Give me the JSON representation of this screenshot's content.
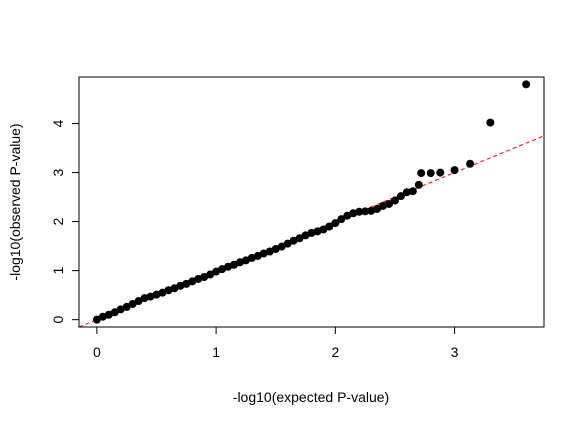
{
  "chart_data": {
    "type": "scatter",
    "title": "",
    "xlabel": "-log10(expected P-value)",
    "ylabel": "-log10(observed P-value)",
    "xlim": [
      -0.15,
      3.75
    ],
    "ylim": [
      -0.15,
      4.95
    ],
    "x_ticks": [
      0,
      1,
      2,
      3
    ],
    "y_ticks": [
      0,
      1,
      2,
      3,
      4
    ],
    "grid": false,
    "legend": "none",
    "reference_line": {
      "intercept": 0,
      "slope": 1,
      "style": "dashed",
      "color": "#ff0000"
    },
    "point_color": "#000000",
    "series": [
      {
        "points": [
          [
            0.0,
            0.0
          ],
          [
            0.05,
            0.06
          ],
          [
            0.1,
            0.1
          ],
          [
            0.15,
            0.15
          ],
          [
            0.2,
            0.21
          ],
          [
            0.25,
            0.26
          ],
          [
            0.3,
            0.32
          ],
          [
            0.35,
            0.38
          ],
          [
            0.4,
            0.44
          ],
          [
            0.45,
            0.47
          ],
          [
            0.5,
            0.51
          ],
          [
            0.55,
            0.55
          ],
          [
            0.6,
            0.6
          ],
          [
            0.65,
            0.64
          ],
          [
            0.7,
            0.69
          ],
          [
            0.75,
            0.73
          ],
          [
            0.8,
            0.78
          ],
          [
            0.85,
            0.83
          ],
          [
            0.9,
            0.87
          ],
          [
            0.95,
            0.92
          ],
          [
            1.0,
            0.98
          ],
          [
            1.05,
            1.03
          ],
          [
            1.1,
            1.08
          ],
          [
            1.15,
            1.12
          ],
          [
            1.2,
            1.17
          ],
          [
            1.25,
            1.21
          ],
          [
            1.3,
            1.26
          ],
          [
            1.35,
            1.3
          ],
          [
            1.4,
            1.35
          ],
          [
            1.45,
            1.39
          ],
          [
            1.5,
            1.44
          ],
          [
            1.55,
            1.49
          ],
          [
            1.6,
            1.55
          ],
          [
            1.65,
            1.61
          ],
          [
            1.7,
            1.66
          ],
          [
            1.75,
            1.72
          ],
          [
            1.8,
            1.77
          ],
          [
            1.85,
            1.8
          ],
          [
            1.9,
            1.84
          ],
          [
            1.95,
            1.9
          ],
          [
            2.0,
            1.97
          ],
          [
            2.05,
            2.05
          ],
          [
            2.1,
            2.12
          ],
          [
            2.15,
            2.17
          ],
          [
            2.2,
            2.2
          ],
          [
            2.25,
            2.21
          ],
          [
            2.3,
            2.22
          ],
          [
            2.35,
            2.26
          ],
          [
            2.4,
            2.32
          ],
          [
            2.45,
            2.36
          ],
          [
            2.5,
            2.43
          ],
          [
            2.55,
            2.52
          ],
          [
            2.6,
            2.6
          ],
          [
            2.65,
            2.62
          ],
          [
            2.7,
            2.75
          ],
          [
            2.72,
            2.99
          ],
          [
            2.8,
            2.99
          ],
          [
            2.88,
            3.0
          ],
          [
            3.0,
            3.05
          ],
          [
            3.13,
            3.18
          ],
          [
            3.3,
            4.02
          ],
          [
            3.6,
            4.8
          ]
        ]
      }
    ]
  }
}
